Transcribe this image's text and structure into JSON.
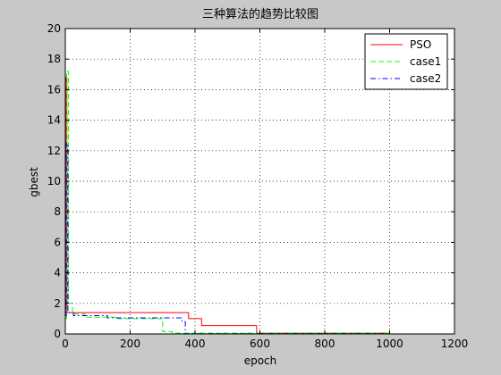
{
  "chart_data": {
    "type": "line",
    "title": "三种算法的趋势比较图",
    "xlabel": "epoch",
    "ylabel": "gbest",
    "xlim": [
      0,
      1200
    ],
    "ylim": [
      0,
      20
    ],
    "xticks": [
      0,
      200,
      400,
      600,
      800,
      1000,
      1200
    ],
    "yticks": [
      0,
      2,
      4,
      6,
      8,
      10,
      12,
      14,
      16,
      18,
      20
    ],
    "grid": true,
    "legend_position": "top-right",
    "series": [
      {
        "name": "PSO",
        "color": "#ff0000",
        "style": "solid",
        "x": [
          0,
          2,
          2,
          5,
          5,
          380,
          380,
          420,
          420,
          590,
          590,
          1000
        ],
        "y": [
          1.5,
          1.5,
          16.8,
          16.8,
          1.4,
          1.4,
          1.0,
          1.0,
          0.55,
          0.55,
          0.05,
          0.05
        ]
      },
      {
        "name": "case1",
        "color": "#00ff00",
        "style": "dashed",
        "x": [
          0,
          4,
          4,
          10,
          10,
          22,
          22,
          60,
          60,
          160,
          160,
          300,
          300,
          330,
          330,
          1000
        ],
        "y": [
          1.0,
          1.0,
          17.2,
          17.2,
          2.0,
          2.0,
          1.3,
          1.3,
          1.1,
          1.1,
          1.0,
          1.0,
          0.15,
          0.15,
          0.05,
          0.05
        ]
      },
      {
        "name": "case2",
        "color": "#0000ff",
        "style": "dashdot",
        "x": [
          0,
          3,
          3,
          8,
          8,
          25,
          25,
          130,
          130,
          360,
          360,
          370,
          370,
          1000
        ],
        "y": [
          1.2,
          1.2,
          12.5,
          12.5,
          1.4,
          1.4,
          1.2,
          1.2,
          1.05,
          1.05,
          0.8,
          0.8,
          0.02,
          0.02
        ]
      }
    ]
  }
}
